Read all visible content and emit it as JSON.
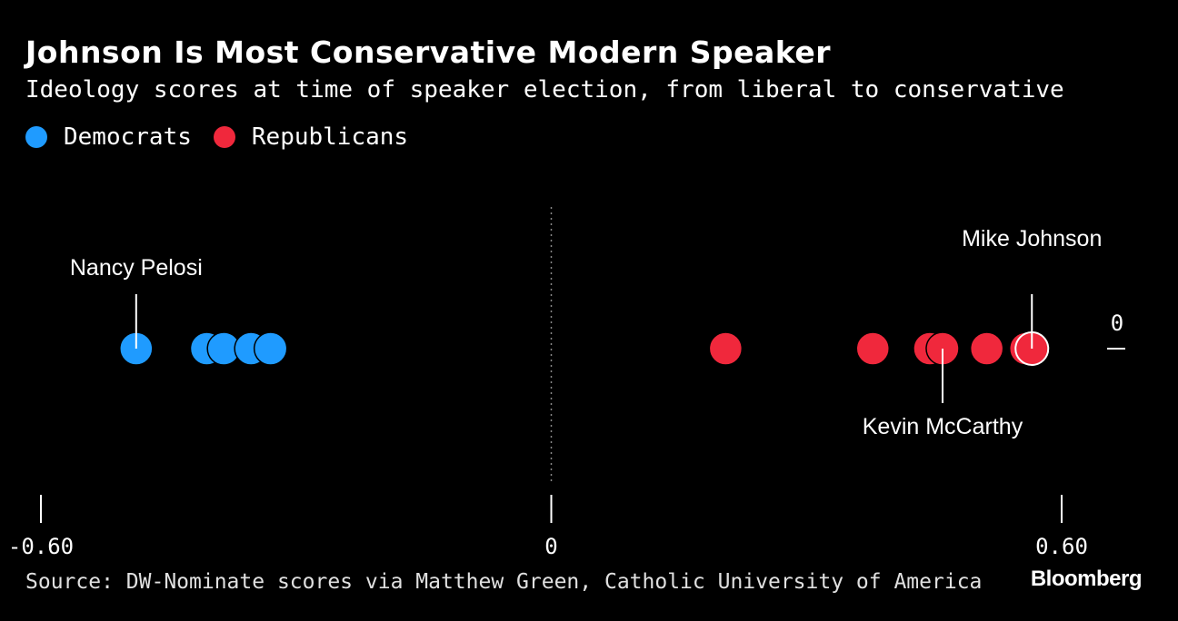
{
  "header": {
    "title": "Johnson Is Most Conservative Modern Speaker",
    "subtitle": "Ideology scores at time of speaker election, from liberal to conservative"
  },
  "legend": [
    {
      "label": "Democrats",
      "color": "#1f9bff"
    },
    {
      "label": "Republicans",
      "color": "#f0283c"
    }
  ],
  "footer": {
    "source": "Source: DW-Nominate scores via Matthew Green, Catholic University of America",
    "brand": "Bloomberg"
  },
  "chart_data": {
    "type": "scatter",
    "title": "Johnson Is Most Conservative Modern Speaker",
    "xlim": [
      -0.6,
      0.6
    ],
    "x_ticks": [
      {
        "value": -0.6,
        "label": "-0.60"
      },
      {
        "value": 0,
        "label": "0"
      },
      {
        "value": 0.6,
        "label": "0.60"
      }
    ],
    "y_tick_label": "0",
    "series": [
      {
        "name": "Democrats",
        "color": "#1f9bff",
        "values": [
          -0.488,
          -0.405,
          -0.385,
          -0.353,
          -0.33
        ]
      },
      {
        "name": "Republicans",
        "color": "#f0283c",
        "values": [
          0.205,
          0.378,
          0.445,
          0.46,
          0.512,
          0.558,
          0.565
        ]
      }
    ],
    "annotations": [
      {
        "label": "Nancy Pelosi",
        "value": -0.488,
        "position": "above"
      },
      {
        "label": "Mike Johnson",
        "value": 0.565,
        "position": "above",
        "highlight": true
      },
      {
        "label": "Kevin McCarthy",
        "value": 0.46,
        "position": "below"
      }
    ]
  }
}
